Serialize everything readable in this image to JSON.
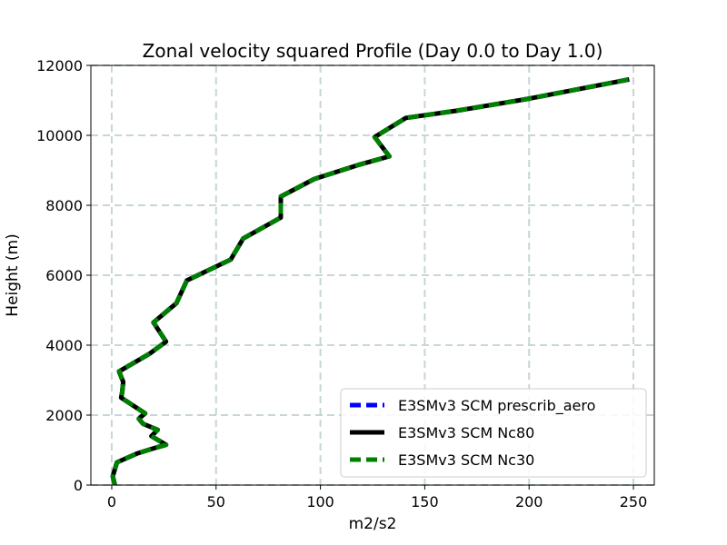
{
  "chart_data": {
    "type": "line",
    "title": "Zonal velocity squared Profile (Day 0.0 to Day 1.0)",
    "xlabel": "m2/s2",
    "ylabel": "Height (m)",
    "xlim": [
      -10,
      260
    ],
    "ylim": [
      0,
      12000
    ],
    "xticks": [
      0,
      50,
      100,
      150,
      200,
      250
    ],
    "yticks": [
      0,
      2000,
      4000,
      6000,
      8000,
      10000,
      12000
    ],
    "xtick_labels": [
      "0",
      "50",
      "100",
      "150",
      "200",
      "250"
    ],
    "ytick_labels": [
      "0",
      "2000",
      "4000",
      "6000",
      "8000",
      "10000",
      "12000"
    ],
    "grid": true,
    "legend_position": "lower-right",
    "profile": {
      "x": [
        1.5,
        0.5,
        2.5,
        12,
        20,
        26,
        19,
        22,
        15,
        13,
        16,
        4.5,
        5,
        5.5,
        3.5,
        18,
        26,
        20,
        31,
        36,
        57,
        63,
        81,
        81,
        97,
        118,
        133,
        126,
        141,
        165,
        200,
        248
      ],
      "y": [
        0,
        250,
        650,
        900,
        1050,
        1150,
        1400,
        1580,
        1750,
        1900,
        2050,
        2500,
        2650,
        2950,
        3250,
        3750,
        4100,
        4650,
        5200,
        5850,
        6450,
        7050,
        7650,
        8250,
        8750,
        9150,
        9400,
        9950,
        10500,
        10700,
        11050,
        11600
      ]
    },
    "series": [
      {
        "name": "E3SMv3 SCM prescrib_aero",
        "color": "#0000ff",
        "style": "dashed"
      },
      {
        "name": "E3SMv3 SCM Nc80",
        "color": "#000000",
        "style": "solid"
      },
      {
        "name": "E3SMv3 SCM Nc30",
        "color": "#008000",
        "style": "dashed"
      }
    ]
  }
}
